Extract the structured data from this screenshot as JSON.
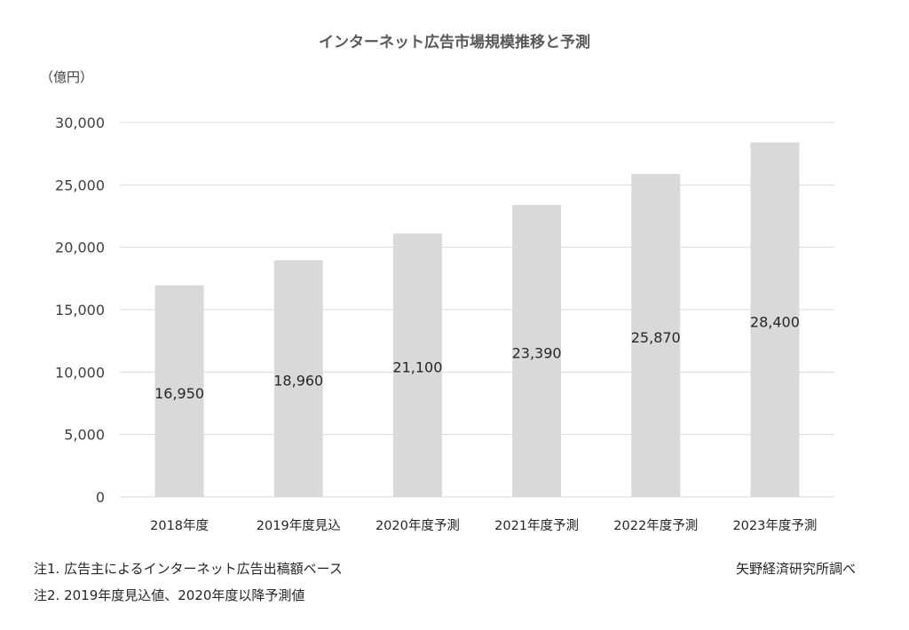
{
  "chart_data": {
    "type": "bar",
    "title": "インターネット広告市場規模推移と予測",
    "unit_label": "（億円）",
    "categories": [
      "2018年度",
      "2019年度見込",
      "2020年度予測",
      "2021年度予測",
      "2022年度予測",
      "2023年度予測"
    ],
    "values": [
      16950,
      18960,
      21100,
      23390,
      25870,
      28400
    ],
    "value_labels": [
      "16,950",
      "18,960",
      "21,100",
      "23,390",
      "25,870",
      "28,400"
    ],
    "ylim": [
      0,
      30000
    ],
    "yticks": [
      0,
      5000,
      10000,
      15000,
      20000,
      25000,
      30000
    ],
    "ytick_labels": [
      "0",
      "5,000",
      "10,000",
      "15,000",
      "20,000",
      "25,000",
      "30,000"
    ],
    "grid": true,
    "bar_color": "#d9d9d9",
    "grid_color": "#d9d9d9"
  },
  "notes": {
    "note1": "注1. 広告主によるインターネット広告出稿額ベース",
    "note2": "注2. 2019年度見込値、2020年度以降予測値",
    "source": "矢野経済研究所調べ"
  }
}
